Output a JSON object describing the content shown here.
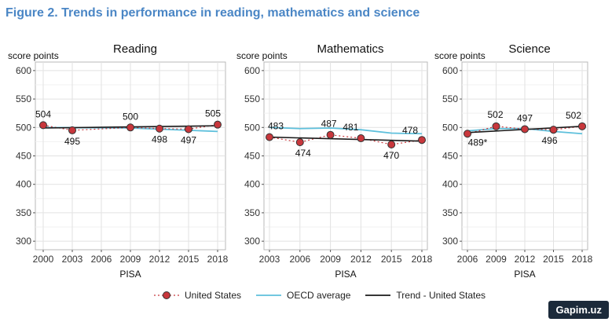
{
  "figure_title": "Figure 2. Trends in performance in reading, mathematics and science",
  "colors": {
    "us": "#c8373c",
    "oecd": "#5ec0dc",
    "trend": "#1a1a1a"
  },
  "legend": {
    "us_label": "United States",
    "oecd_label": "OECD average",
    "trend_label": "Trend - United States"
  },
  "watermark": "Gapim.uz",
  "chart_data": [
    {
      "type": "line",
      "title": "Reading",
      "ylabel": "score points",
      "xlabel": "PISA",
      "x": [
        2000,
        2003,
        2006,
        2009,
        2012,
        2015,
        2018
      ],
      "ylim": [
        285,
        615
      ],
      "yticks": [
        300,
        350,
        400,
        450,
        500,
        550,
        600
      ],
      "us_points": [
        {
          "x": 2000,
          "y": 504,
          "label": "504"
        },
        {
          "x": 2003,
          "y": 495,
          "label": "495"
        },
        {
          "x": 2009,
          "y": 500,
          "label": "500"
        },
        {
          "x": 2012,
          "y": 498,
          "label": "498"
        },
        {
          "x": 2015,
          "y": 497,
          "label": "497"
        },
        {
          "x": 2018,
          "y": 505,
          "label": "505"
        }
      ],
      "oecd": [
        [
          2000,
          500
        ],
        [
          2009,
          499
        ],
        [
          2012,
          497
        ],
        [
          2015,
          495
        ],
        [
          2018,
          493
        ]
      ],
      "trend": [
        [
          2000,
          499
        ],
        [
          2018,
          503
        ]
      ]
    },
    {
      "type": "line",
      "title": "Mathematics",
      "ylabel": "score points",
      "xlabel": "PISA",
      "x": [
        2003,
        2006,
        2009,
        2012,
        2015,
        2018
      ],
      "ylim": [
        285,
        615
      ],
      "yticks": [
        300,
        350,
        400,
        450,
        500,
        550,
        600
      ],
      "us_points": [
        {
          "x": 2003,
          "y": 483,
          "label": "483"
        },
        {
          "x": 2006,
          "y": 474,
          "label": "474"
        },
        {
          "x": 2009,
          "y": 487,
          "label": "487"
        },
        {
          "x": 2012,
          "y": 481,
          "label": "481"
        },
        {
          "x": 2015,
          "y": 470,
          "label": "470"
        },
        {
          "x": 2018,
          "y": 478,
          "label": "478"
        }
      ],
      "oecd": [
        [
          2003,
          500
        ],
        [
          2006,
          498
        ],
        [
          2009,
          499
        ],
        [
          2012,
          496
        ],
        [
          2015,
          490
        ],
        [
          2018,
          489
        ]
      ],
      "trend": [
        [
          2003,
          483
        ],
        [
          2018,
          476
        ]
      ]
    },
    {
      "type": "line",
      "title": "Science",
      "ylabel": "score points",
      "xlabel": "PISA",
      "x": [
        2006,
        2009,
        2012,
        2015,
        2018
      ],
      "ylim": [
        285,
        615
      ],
      "yticks": [
        300,
        350,
        400,
        450,
        500,
        550,
        600
      ],
      "us_points": [
        {
          "x": 2006,
          "y": 489,
          "label": "489*"
        },
        {
          "x": 2009,
          "y": 502,
          "label": "502"
        },
        {
          "x": 2012,
          "y": 497,
          "label": "497"
        },
        {
          "x": 2015,
          "y": 496,
          "label": "496"
        },
        {
          "x": 2018,
          "y": 502,
          "label": "502"
        }
      ],
      "oecd": [
        [
          2006,
          494
        ],
        [
          2009,
          498
        ],
        [
          2012,
          498
        ],
        [
          2015,
          493
        ],
        [
          2018,
          489
        ]
      ],
      "trend": [
        [
          2006,
          491
        ],
        [
          2018,
          502
        ]
      ]
    }
  ]
}
